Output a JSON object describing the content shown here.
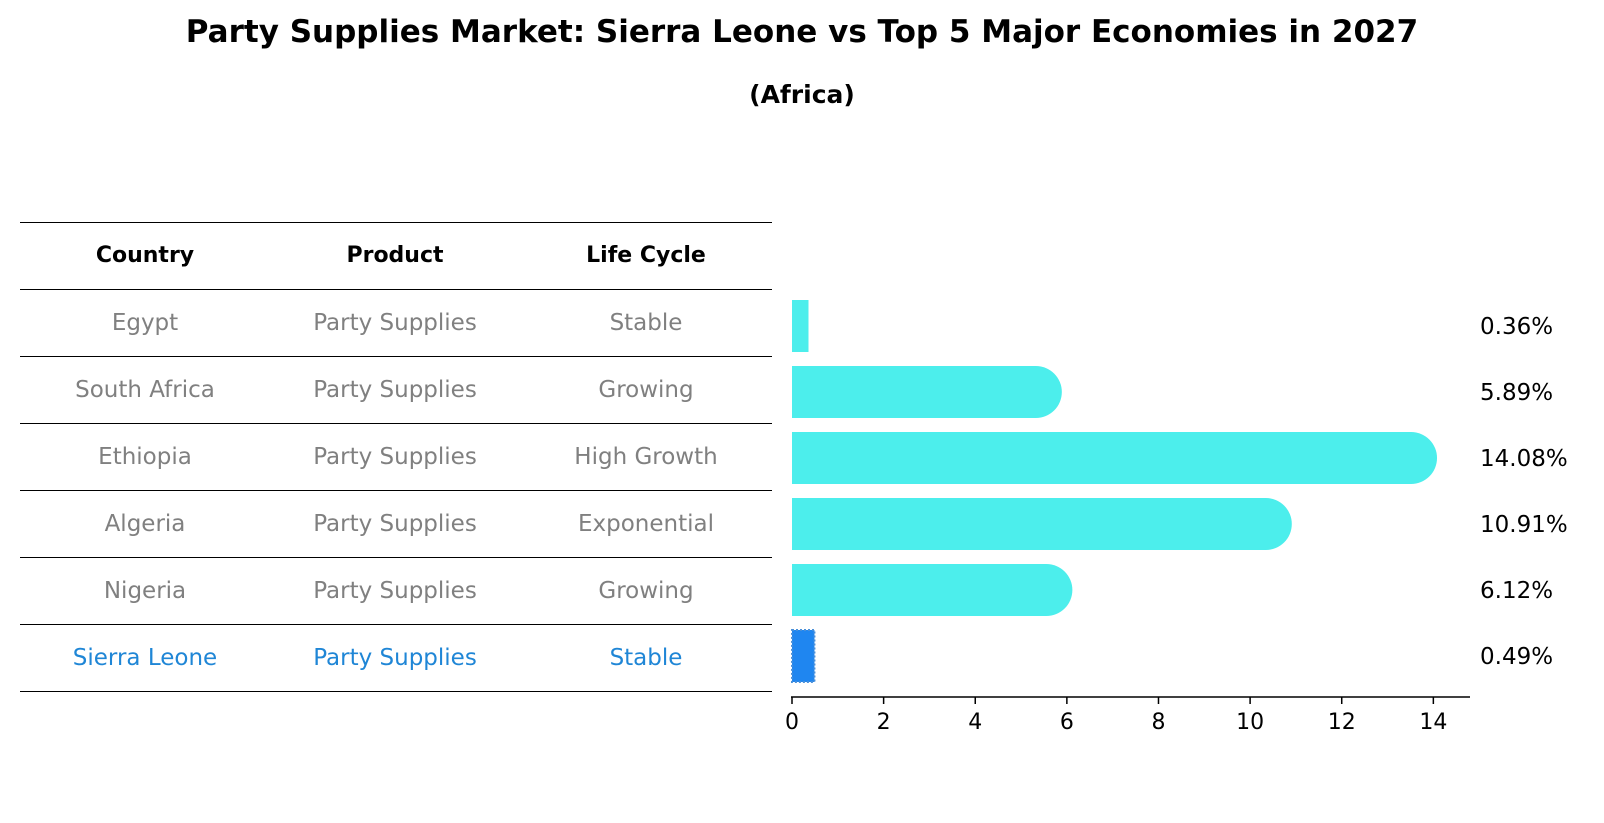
{
  "header": {
    "title": "Party Supplies Market: Sierra Leone vs Top 5 Major Economies in 2027",
    "subtitle": "(Africa)"
  },
  "table": {
    "columns": [
      "Country",
      "Product",
      "Life Cycle"
    ],
    "rows": [
      {
        "country": "Egypt",
        "product": "Party Supplies",
        "life_cycle": "Stable"
      },
      {
        "country": "South Africa",
        "product": "Party Supplies",
        "life_cycle": "Growing"
      },
      {
        "country": "Ethiopia",
        "product": "Party Supplies",
        "life_cycle": "High Growth"
      },
      {
        "country": "Algeria",
        "product": "Party Supplies",
        "life_cycle": "Exponential"
      },
      {
        "country": "Nigeria",
        "product": "Party Supplies",
        "life_cycle": "Growing"
      },
      {
        "country": "Sierra Leone",
        "product": "Party Supplies",
        "life_cycle": "Stable"
      }
    ]
  },
  "colors": {
    "bar": "#4ceeec",
    "highlight_bar": "#1f86f0",
    "highlight_text": "#1f86d6",
    "table_text": "#808080"
  },
  "chart_data": {
    "type": "bar",
    "orientation": "horizontal",
    "title": "Party Supplies Market: Sierra Leone vs Top 5 Major Economies in 2027",
    "subtitle": "(Africa)",
    "categories": [
      "Egypt",
      "South Africa",
      "Ethiopia",
      "Algeria",
      "Nigeria",
      "Sierra Leone"
    ],
    "values": [
      0.36,
      5.89,
      14.08,
      10.91,
      6.12,
      0.49
    ],
    "value_labels": [
      "0.36%",
      "5.89%",
      "14.08%",
      "10.91%",
      "6.12%",
      "0.49%"
    ],
    "highlight": "Sierra Leone",
    "xlim": [
      0,
      14.8
    ],
    "xticks": [
      0,
      2,
      4,
      6,
      8,
      10,
      12,
      14
    ],
    "xlabel": "",
    "ylabel": "",
    "grid": false
  }
}
